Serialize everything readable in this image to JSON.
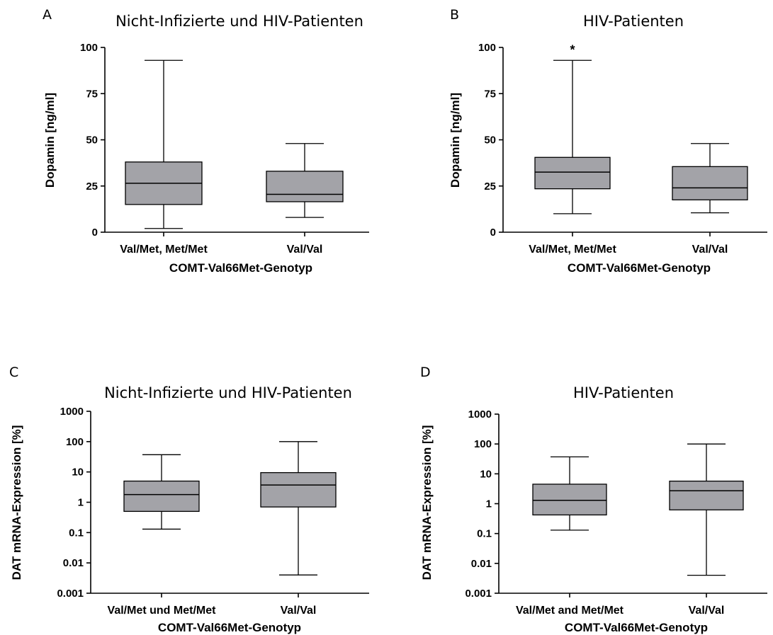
{
  "chart_data": [
    {
      "type": "box",
      "panel_letter": "A",
      "title": "Nicht-Infizierte und  HIV-Patienten",
      "xlabel": "COMT-Val66Met-Genotyp",
      "ylabel": "Dopamin [ng/ml]",
      "yscale": "linear",
      "ylim": [
        0,
        100
      ],
      "yticks": [
        0,
        25,
        50,
        75,
        100
      ],
      "ytick_labels": [
        "0",
        "25",
        "50",
        "75",
        "100"
      ],
      "categories": [
        "Val/Met, Met/Met",
        "Val/Val"
      ],
      "boxes": [
        {
          "min": 2,
          "q1": 15,
          "median": 26.5,
          "q3": 38,
          "max": 93
        },
        {
          "min": 8,
          "q1": 16.5,
          "median": 20.5,
          "q3": 33,
          "max": 48
        }
      ],
      "annotations": []
    },
    {
      "type": "box",
      "panel_letter": "B",
      "title": "HIV-Patienten",
      "xlabel": "COMT-Val66Met-Genotyp",
      "ylabel": "Dopamin [ng/ml]",
      "yscale": "linear",
      "ylim": [
        0,
        100
      ],
      "yticks": [
        0,
        25,
        50,
        75,
        100
      ],
      "ytick_labels": [
        "0",
        "25",
        "50",
        "75",
        "100"
      ],
      "categories": [
        "Val/Met, Met/Met",
        "Val/Val"
      ],
      "boxes": [
        {
          "min": 10,
          "q1": 23.5,
          "median": 32.5,
          "q3": 40.5,
          "max": 93
        },
        {
          "min": 10.5,
          "q1": 17.5,
          "median": 24,
          "q3": 35.5,
          "max": 48
        }
      ],
      "annotations": [
        {
          "text": "*",
          "category_index": 0
        }
      ]
    },
    {
      "type": "box",
      "panel_letter": "C",
      "title": "Nicht-Infizierte und  HIV-Patienten",
      "xlabel": "COMT-Val66Met-Genotyp",
      "ylabel": "DAT mRNA-Expression [%]",
      "yscale": "log",
      "ylim": [
        0.001,
        1000
      ],
      "yticks": [
        0.001,
        0.01,
        0.1,
        1,
        10,
        100,
        1000
      ],
      "ytick_labels": [
        "0.001",
        "0.01",
        "0.1",
        "1",
        "10",
        "100",
        "1000"
      ],
      "categories": [
        "Val/Met und Met/Met",
        "Val/Val"
      ],
      "boxes": [
        {
          "min": 0.13,
          "q1": 0.5,
          "median": 1.8,
          "q3": 5,
          "max": 37
        },
        {
          "min": 0.004,
          "q1": 0.7,
          "median": 3.7,
          "q3": 9.5,
          "max": 100
        }
      ],
      "annotations": []
    },
    {
      "type": "box",
      "panel_letter": "D",
      "title": "HIV-Patienten",
      "xlabel": "COMT-Val66Met-Genotyp",
      "ylabel": "DAT mRNA-Expression [%]",
      "yscale": "log",
      "ylim": [
        0.001,
        1000
      ],
      "yticks": [
        0.001,
        0.01,
        0.1,
        1,
        10,
        100,
        1000
      ],
      "ytick_labels": [
        "0.001",
        "0.01",
        "0.1",
        "1",
        "10",
        "100",
        "1000"
      ],
      "categories": [
        "Val/Met and Met/Met",
        "Val/Val"
      ],
      "boxes": [
        {
          "min": 0.13,
          "q1": 0.42,
          "median": 1.3,
          "q3": 4.5,
          "max": 37
        },
        {
          "min": 0.004,
          "q1": 0.62,
          "median": 2.7,
          "q3": 5.7,
          "max": 100
        }
      ],
      "annotations": []
    }
  ]
}
